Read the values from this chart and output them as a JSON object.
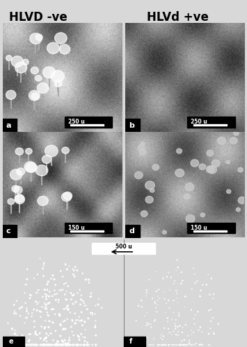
{
  "title_left": "HLVD -ve",
  "title_right": "HLVd +ve",
  "title_fontsize": 12,
  "title_fontweight": "bold",
  "scale_bar_ab": "250 u",
  "scale_bar_cd": "150 u",
  "scale_bar_ef": "500 u",
  "label_a": "a",
  "label_b": "b",
  "label_c": "c",
  "label_d": "d",
  "label_e": "e",
  "label_f": "f",
  "outer_bg": "#d8d8d8"
}
